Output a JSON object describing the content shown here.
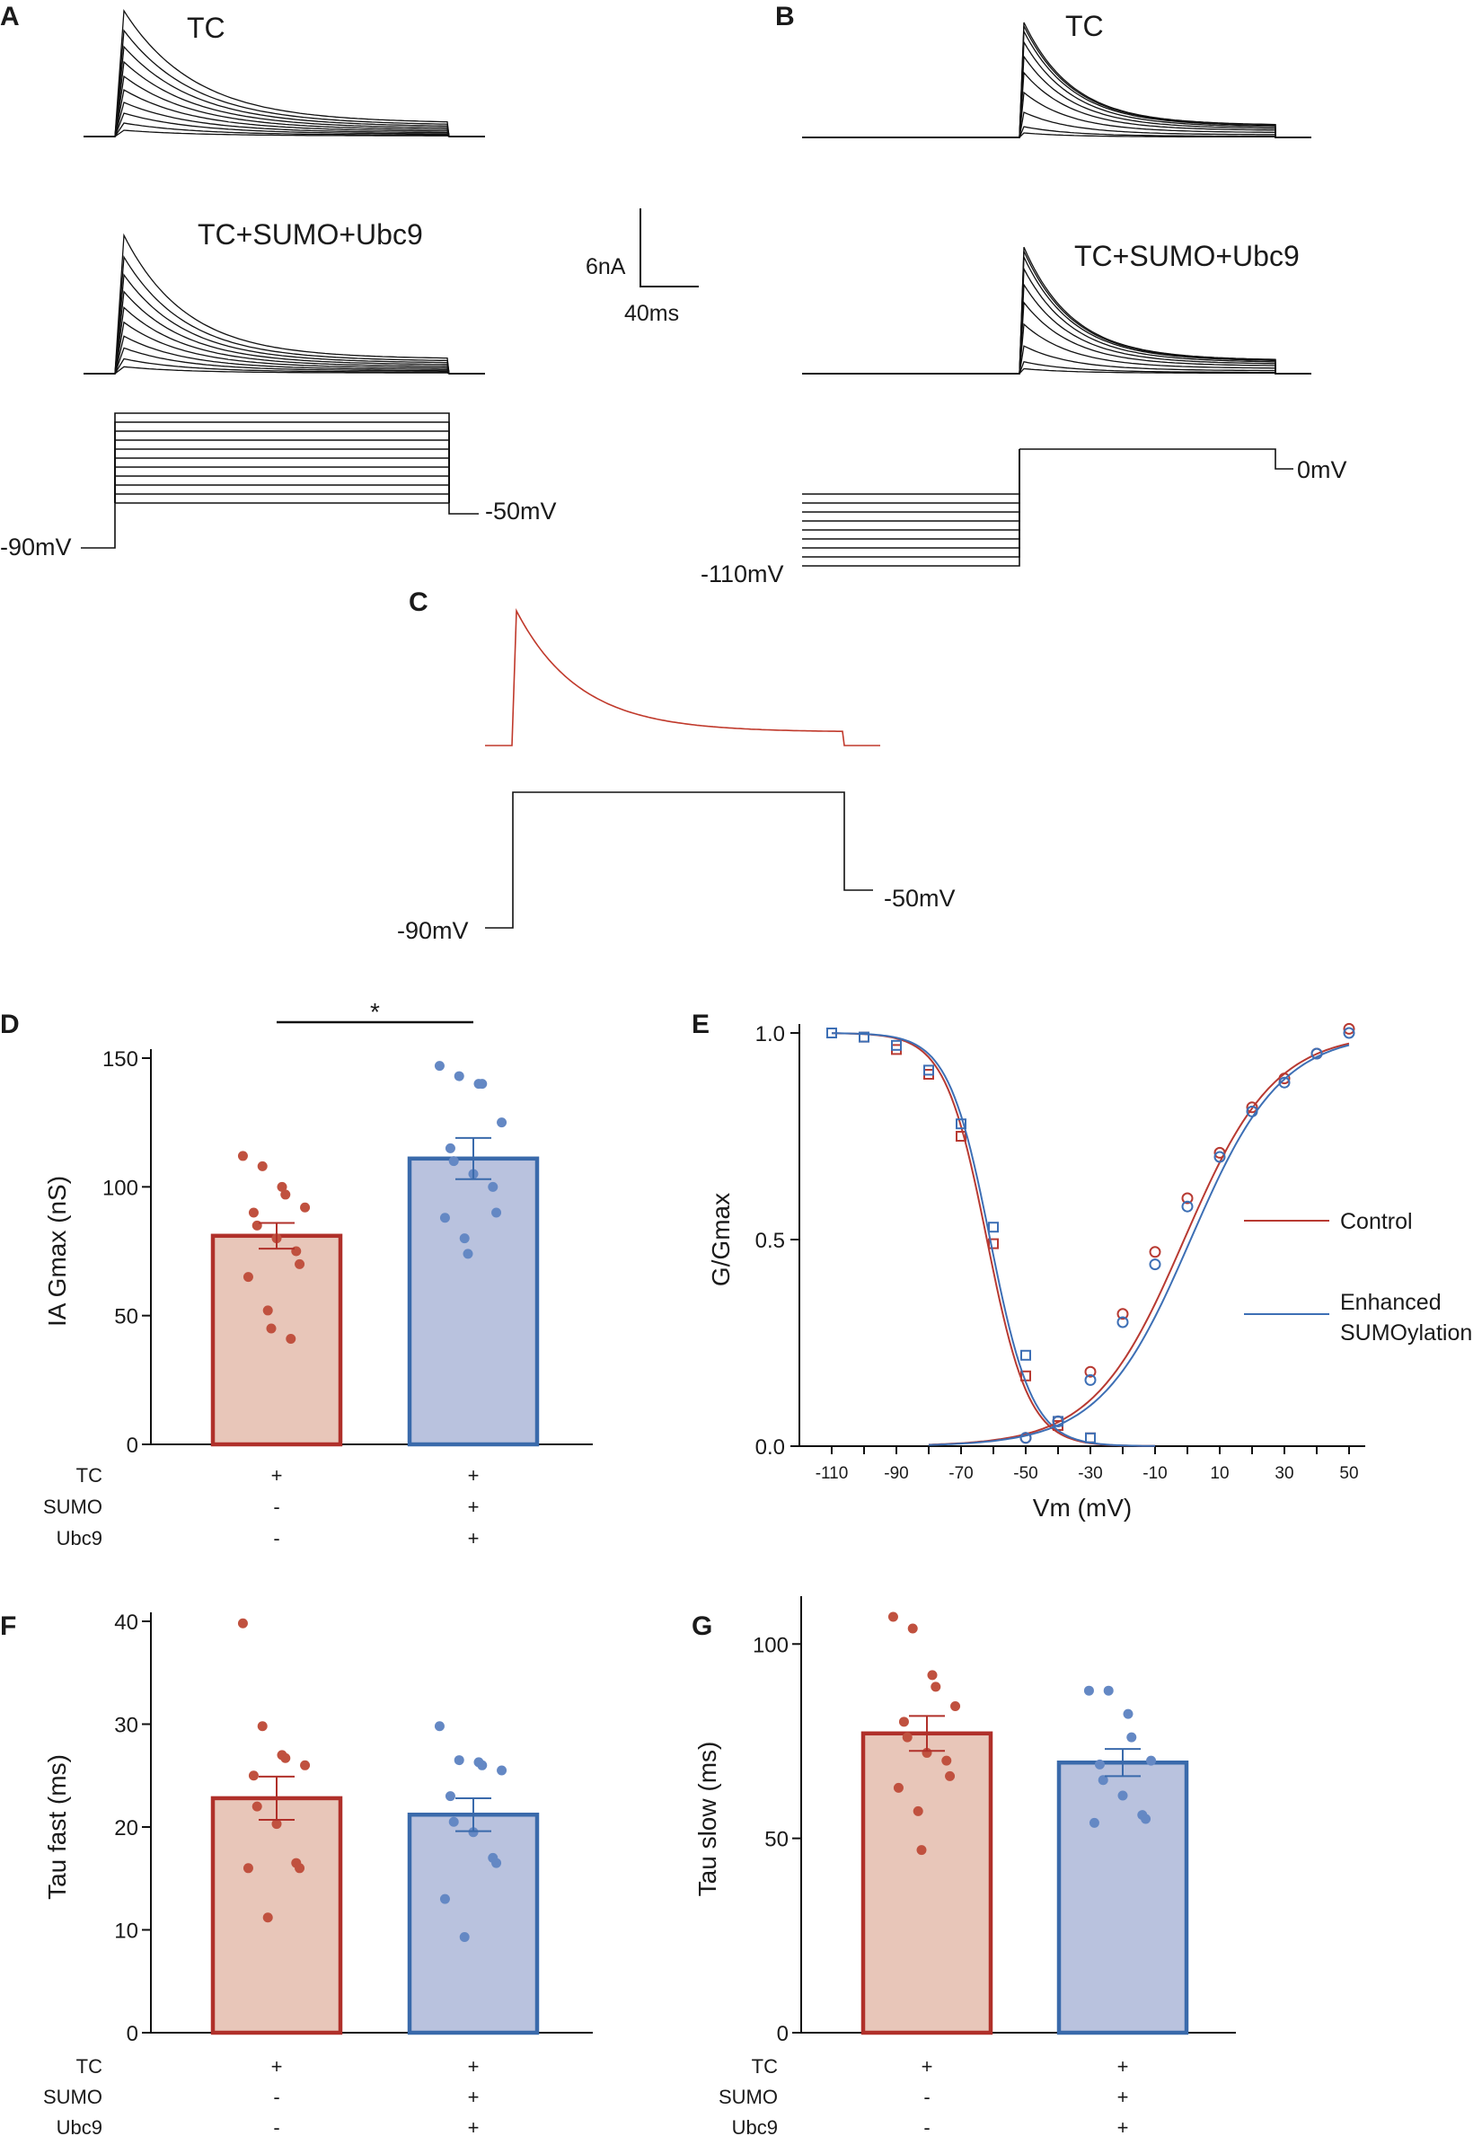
{
  "panels": {
    "A": {
      "letter": "A",
      "trace_top_label": "TC",
      "trace_bottom_label": "TC+SUMO+Ubc9",
      "holding_label": "-90mV",
      "step_end_label": "-50mV"
    },
    "B": {
      "letter": "B",
      "trace_top_label": "TC",
      "trace_bottom_label": "TC+SUMO+Ubc9",
      "prepulse_label": "-110mV",
      "test_label": "0mV"
    },
    "C": {
      "letter": "C",
      "holding_label": "-90mV",
      "step_end_label": "-50mV"
    },
    "scale_bar": {
      "current": "6nA",
      "time": "40ms"
    }
  },
  "chart_data": [
    {
      "panel": "D",
      "type": "bar",
      "ylabel": "IA Gmax (nS)",
      "ylim": [
        0,
        150
      ],
      "yticks": [
        0,
        50,
        100,
        150
      ],
      "significance": "*",
      "conditions": [
        {
          "name": "TC",
          "marks": [
            "+",
            "+"
          ]
        },
        {
          "name": "SUMO",
          "marks": [
            "-",
            "+"
          ]
        },
        {
          "name": "Ubc9",
          "marks": [
            "-",
            "+"
          ]
        }
      ],
      "groups": [
        {
          "name": "TC",
          "mean": 81,
          "sem": 5,
          "fill": "#e8c6b9",
          "edge": "#b0302a",
          "dot": "#c0513f",
          "points": [
            112,
            108,
            100,
            97,
            92,
            90,
            85,
            80,
            75,
            70,
            65,
            52,
            45,
            41
          ]
        },
        {
          "name": "TC+SUMO+Ubc9",
          "mean": 111,
          "sem": 8,
          "fill": "#b9c2de",
          "edge": "#3a6aab",
          "dot": "#6488c4",
          "points": [
            147,
            143,
            140,
            140,
            125,
            115,
            110,
            105,
            100,
            90,
            88,
            80,
            74
          ]
        }
      ]
    },
    {
      "panel": "E",
      "type": "scatter",
      "xlabel": "Vm (mV)",
      "ylabel": "G/Gmax",
      "xlim": [
        -120,
        55
      ],
      "ylim": [
        0,
        1
      ],
      "xticks": [
        -110,
        -90,
        -70,
        -50,
        -30,
        -10,
        10,
        30,
        50
      ],
      "yticks": [
        0.0,
        0.5,
        1.0
      ],
      "ytick_labels": [
        "0.0",
        "0.5",
        "1.0"
      ],
      "legend": [
        "Control",
        "Enhanced SUMOylation"
      ],
      "series": [
        {
          "name": "Control inactivation",
          "color": "#b83a32",
          "marker": "square",
          "v_half": -62,
          "slope": 6.5,
          "x": [
            -110,
            -100,
            -90,
            -80,
            -70,
            -60,
            -50,
            -40,
            -30
          ],
          "y": [
            1.0,
            0.99,
            0.96,
            0.9,
            0.75,
            0.49,
            0.17,
            0.05,
            0.02
          ]
        },
        {
          "name": "Enhanced SUMOylation inactivation",
          "color": "#3d6fb5",
          "marker": "square",
          "v_half": -61,
          "slope": 6.5,
          "x": [
            -110,
            -100,
            -90,
            -80,
            -70,
            -60,
            -50,
            -40,
            -30
          ],
          "y": [
            1.0,
            0.99,
            0.97,
            0.91,
            0.78,
            0.53,
            0.22,
            0.06,
            0.02
          ]
        },
        {
          "name": "Control activation",
          "color": "#b83a32",
          "marker": "circle",
          "v_half": -1,
          "slope": 14,
          "x": [
            -50,
            -40,
            -30,
            -20,
            -10,
            0,
            10,
            20,
            30,
            40,
            50
          ],
          "y": [
            0.02,
            0.06,
            0.18,
            0.32,
            0.47,
            0.6,
            0.71,
            0.82,
            0.89,
            0.95,
            1.01
          ]
        },
        {
          "name": "Enhanced SUMOylation activation",
          "color": "#3d6fb5",
          "marker": "circle",
          "v_half": 1,
          "slope": 14,
          "x": [
            -50,
            -40,
            -30,
            -20,
            -10,
            0,
            10,
            20,
            30,
            40,
            50
          ],
          "y": [
            0.02,
            0.06,
            0.16,
            0.3,
            0.44,
            0.58,
            0.7,
            0.81,
            0.88,
            0.95,
            1.0
          ]
        }
      ]
    },
    {
      "panel": "F",
      "type": "bar",
      "ylabel": "Tau fast (ms)",
      "ylim": [
        0,
        40
      ],
      "yticks": [
        0,
        10,
        20,
        30,
        40
      ],
      "conditions": [
        {
          "name": "TC",
          "marks": [
            "+",
            "+"
          ]
        },
        {
          "name": "SUMO",
          "marks": [
            "-",
            "+"
          ]
        },
        {
          "name": "Ubc9",
          "marks": [
            "-",
            "+"
          ]
        }
      ],
      "groups": [
        {
          "name": "TC",
          "mean": 22.8,
          "sem": 2.1,
          "fill": "#e8c6b9",
          "edge": "#b0302a",
          "dot": "#c0513f",
          "points": [
            39.8,
            29.8,
            27,
            26.7,
            26,
            25,
            22,
            20.3,
            16.5,
            16,
            16,
            11.2
          ]
        },
        {
          "name": "TC+SUMO+Ubc9",
          "mean": 21.2,
          "sem": 1.6,
          "fill": "#b9c2de",
          "edge": "#3a6aab",
          "dot": "#6488c4",
          "points": [
            29.8,
            26.5,
            26.3,
            26,
            25.5,
            23,
            20.5,
            19.5,
            17,
            16.5,
            13,
            9.3
          ]
        }
      ]
    },
    {
      "panel": "G",
      "type": "bar",
      "ylabel": "Tau slow (ms)",
      "ylim": [
        0,
        110
      ],
      "yticks": [
        0,
        50,
        100
      ],
      "conditions": [
        {
          "name": "TC",
          "marks": [
            "+",
            "+"
          ]
        },
        {
          "name": "SUMO",
          "marks": [
            "-",
            "+"
          ]
        },
        {
          "name": "Ubc9",
          "marks": [
            "-",
            "+"
          ]
        }
      ],
      "groups": [
        {
          "name": "TC",
          "mean": 77,
          "sem": 4.5,
          "fill": "#e8c6b9",
          "edge": "#b0302a",
          "dot": "#c0513f",
          "points": [
            107,
            104,
            92,
            89,
            84,
            80,
            76,
            72,
            70,
            66,
            63,
            57,
            47
          ]
        },
        {
          "name": "TC+SUMO+Ubc9",
          "mean": 69.5,
          "sem": 3.5,
          "fill": "#b9c2de",
          "edge": "#3a6aab",
          "dot": "#6488c4",
          "points": [
            88,
            88,
            82,
            76,
            70,
            69,
            65,
            61,
            56,
            55,
            54
          ]
        }
      ]
    }
  ]
}
